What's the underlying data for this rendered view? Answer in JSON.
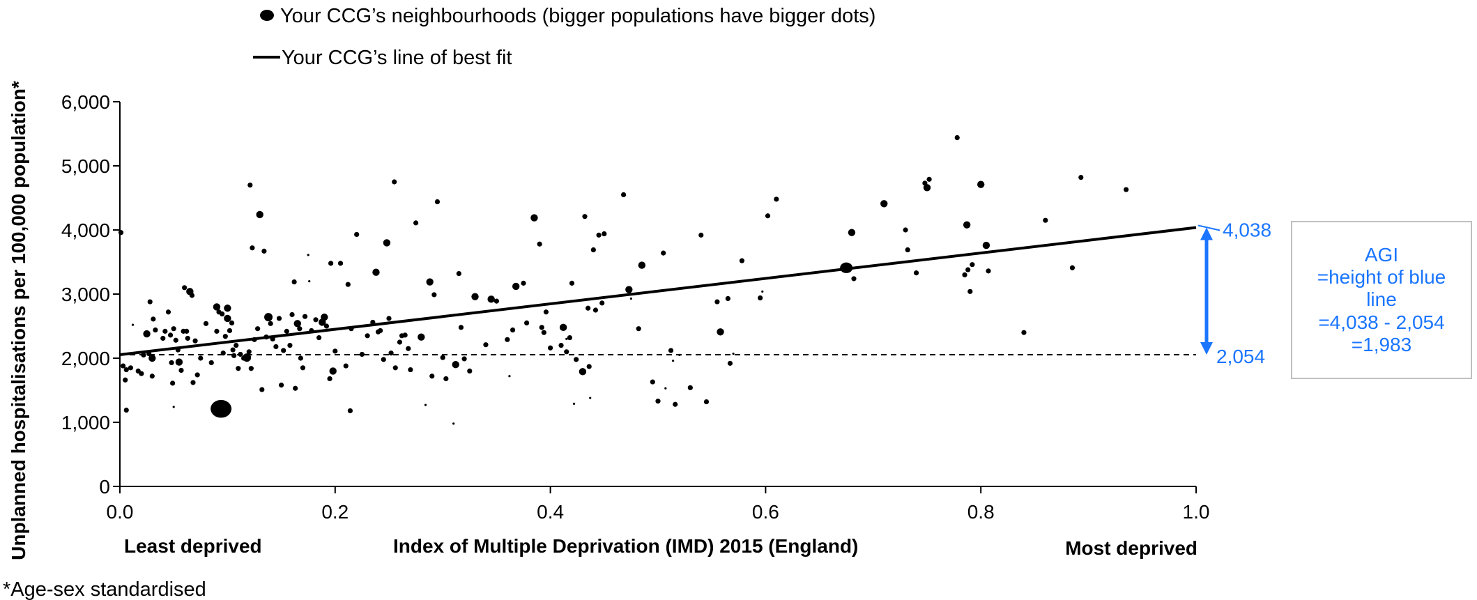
{
  "chart_data": {
    "type": "scatter",
    "legend": {
      "dots_label": "Your CCG’s neighbourhoods (bigger populations have bigger dots)",
      "line_label": "Your CCG’s line of best fit"
    },
    "ylabel": "Unplanned hospitalisations per 100,000 population*",
    "xlabel": "Index of Multiple Deprivation (IMD) 2015 (England)",
    "x_left_label": "Least deprived",
    "x_right_label": "Most deprived",
    "footnote": "*Age-sex standardised",
    "xlim": [
      0,
      1
    ],
    "ylim": [
      0,
      6000
    ],
    "x_ticks": [
      0,
      0.2,
      0.4,
      0.6,
      0.8,
      1
    ],
    "x_tick_labels": [
      "0.0",
      "0.2",
      "0.4",
      "0.6",
      "0.8",
      "1.0"
    ],
    "y_ticks": [
      0,
      1000,
      2000,
      3000,
      4000,
      5000,
      6000
    ],
    "y_tick_labels": [
      "0",
      "1,000",
      "2,000",
      "3,000",
      "4,000",
      "5,000",
      "6,000"
    ],
    "best_fit": {
      "x": [
        0,
        1
      ],
      "y": [
        2054,
        4038
      ]
    },
    "reference_line_y": 2054,
    "annotation": {
      "top_label": "4,038",
      "bottom_label": "2,054",
      "top_value": 4038,
      "bottom_value": 2054,
      "box_lines": [
        "AGI",
        "=height of blue",
        "line",
        "=4,038 - 2,054",
        "=1,983"
      ]
    },
    "colors": {
      "points": "#000000",
      "accent": "#1a75ff",
      "box_border": "#bfbfbf"
    },
    "points": [
      {
        "x": 0.001,
        "y": 3960,
        "s": 2
      },
      {
        "x": 0.003,
        "y": 1880,
        "s": 2
      },
      {
        "x": 0.005,
        "y": 1660,
        "s": 2
      },
      {
        "x": 0.006,
        "y": 1820,
        "s": 2
      },
      {
        "x": 0.01,
        "y": 1850,
        "s": 2
      },
      {
        "x": 0.006,
        "y": 1190,
        "s": 2
      },
      {
        "x": 0.012,
        "y": 2520,
        "s": 1
      },
      {
        "x": 0.017,
        "y": 1800,
        "s": 2
      },
      {
        "x": 0.02,
        "y": 1760,
        "s": 2
      },
      {
        "x": 0.022,
        "y": 2050,
        "s": 2
      },
      {
        "x": 0.025,
        "y": 2380,
        "s": 3
      },
      {
        "x": 0.027,
        "y": 2070,
        "s": 2
      },
      {
        "x": 0.028,
        "y": 2880,
        "s": 2
      },
      {
        "x": 0.03,
        "y": 2000,
        "s": 3
      },
      {
        "x": 0.03,
        "y": 1720,
        "s": 2
      },
      {
        "x": 0.031,
        "y": 2610,
        "s": 2
      },
      {
        "x": 0.033,
        "y": 2440,
        "s": 2
      },
      {
        "x": 0.04,
        "y": 2310,
        "s": 2
      },
      {
        "x": 0.042,
        "y": 2420,
        "s": 2
      },
      {
        "x": 0.045,
        "y": 2720,
        "s": 2
      },
      {
        "x": 0.047,
        "y": 2360,
        "s": 2
      },
      {
        "x": 0.048,
        "y": 1930,
        "s": 2
      },
      {
        "x": 0.049,
        "y": 1610,
        "s": 2
      },
      {
        "x": 0.05,
        "y": 1240,
        "s": 1
      },
      {
        "x": 0.05,
        "y": 2460,
        "s": 2
      },
      {
        "x": 0.052,
        "y": 2280,
        "s": 2
      },
      {
        "x": 0.054,
        "y": 2130,
        "s": 2
      },
      {
        "x": 0.055,
        "y": 1940,
        "s": 3
      },
      {
        "x": 0.057,
        "y": 1810,
        "s": 2
      },
      {
        "x": 0.059,
        "y": 2420,
        "s": 2
      },
      {
        "x": 0.06,
        "y": 3100,
        "s": 2
      },
      {
        "x": 0.062,
        "y": 2420,
        "s": 2
      },
      {
        "x": 0.063,
        "y": 2310,
        "s": 2
      },
      {
        "x": 0.065,
        "y": 3040,
        "s": 3
      },
      {
        "x": 0.067,
        "y": 2980,
        "s": 2
      },
      {
        "x": 0.068,
        "y": 1620,
        "s": 2
      },
      {
        "x": 0.07,
        "y": 2270,
        "s": 2
      },
      {
        "x": 0.072,
        "y": 1740,
        "s": 2
      },
      {
        "x": 0.075,
        "y": 2000,
        "s": 2
      },
      {
        "x": 0.08,
        "y": 2540,
        "s": 2
      },
      {
        "x": 0.085,
        "y": 1930,
        "s": 2
      },
      {
        "x": 0.09,
        "y": 2420,
        "s": 2
      },
      {
        "x": 0.09,
        "y": 2800,
        "s": 3
      },
      {
        "x": 0.092,
        "y": 2720,
        "s": 2
      },
      {
        "x": 0.094,
        "y": 1210,
        "s": 10
      },
      {
        "x": 0.095,
        "y": 2690,
        "s": 2
      },
      {
        "x": 0.096,
        "y": 2080,
        "s": 2
      },
      {
        "x": 0.098,
        "y": 2340,
        "s": 2
      },
      {
        "x": 0.1,
        "y": 2780,
        "s": 3
      },
      {
        "x": 0.1,
        "y": 2620,
        "s": 3
      },
      {
        "x": 0.102,
        "y": 2430,
        "s": 2
      },
      {
        "x": 0.104,
        "y": 2550,
        "s": 2
      },
      {
        "x": 0.105,
        "y": 2130,
        "s": 2
      },
      {
        "x": 0.106,
        "y": 2040,
        "s": 2
      },
      {
        "x": 0.108,
        "y": 2200,
        "s": 2
      },
      {
        "x": 0.11,
        "y": 1840,
        "s": 2
      },
      {
        "x": 0.112,
        "y": 2060,
        "s": 2
      },
      {
        "x": 0.115,
        "y": 2000,
        "s": 2
      },
      {
        "x": 0.118,
        "y": 2010,
        "s": 4
      },
      {
        "x": 0.12,
        "y": 2100,
        "s": 2
      },
      {
        "x": 0.122,
        "y": 1840,
        "s": 2
      },
      {
        "x": 0.121,
        "y": 4700,
        "s": 2
      },
      {
        "x": 0.123,
        "y": 3720,
        "s": 2
      },
      {
        "x": 0.125,
        "y": 2290,
        "s": 2
      },
      {
        "x": 0.128,
        "y": 2460,
        "s": 2
      },
      {
        "x": 0.13,
        "y": 4240,
        "s": 3
      },
      {
        "x": 0.132,
        "y": 1510,
        "s": 2
      },
      {
        "x": 0.134,
        "y": 3670,
        "s": 2
      },
      {
        "x": 0.136,
        "y": 2330,
        "s": 2
      },
      {
        "x": 0.138,
        "y": 2640,
        "s": 4
      },
      {
        "x": 0.14,
        "y": 2540,
        "s": 2
      },
      {
        "x": 0.142,
        "y": 2300,
        "s": 2
      },
      {
        "x": 0.145,
        "y": 2180,
        "s": 2
      },
      {
        "x": 0.148,
        "y": 2620,
        "s": 2
      },
      {
        "x": 0.15,
        "y": 1580,
        "s": 2
      },
      {
        "x": 0.152,
        "y": 2120,
        "s": 2
      },
      {
        "x": 0.155,
        "y": 2420,
        "s": 2
      },
      {
        "x": 0.158,
        "y": 2200,
        "s": 2
      },
      {
        "x": 0.16,
        "y": 2680,
        "s": 2
      },
      {
        "x": 0.162,
        "y": 3190,
        "s": 2
      },
      {
        "x": 0.163,
        "y": 1530,
        "s": 2
      },
      {
        "x": 0.165,
        "y": 2540,
        "s": 3
      },
      {
        "x": 0.167,
        "y": 2460,
        "s": 2
      },
      {
        "x": 0.168,
        "y": 2000,
        "s": 2
      },
      {
        "x": 0.17,
        "y": 1850,
        "s": 2
      },
      {
        "x": 0.172,
        "y": 2650,
        "s": 2
      },
      {
        "x": 0.175,
        "y": 3610,
        "s": 1
      },
      {
        "x": 0.176,
        "y": 3200,
        "s": 1
      },
      {
        "x": 0.178,
        "y": 2430,
        "s": 2
      },
      {
        "x": 0.182,
        "y": 2600,
        "s": 2
      },
      {
        "x": 0.185,
        "y": 2320,
        "s": 2
      },
      {
        "x": 0.188,
        "y": 2560,
        "s": 3
      },
      {
        "x": 0.19,
        "y": 2640,
        "s": 3
      },
      {
        "x": 0.192,
        "y": 2500,
        "s": 2
      },
      {
        "x": 0.195,
        "y": 1680,
        "s": 2
      },
      {
        "x": 0.196,
        "y": 3480,
        "s": 2
      },
      {
        "x": 0.198,
        "y": 1800,
        "s": 3
      },
      {
        "x": 0.2,
        "y": 2110,
        "s": 2
      },
      {
        "x": 0.205,
        "y": 3480,
        "s": 2
      },
      {
        "x": 0.21,
        "y": 1880,
        "s": 2
      },
      {
        "x": 0.212,
        "y": 3150,
        "s": 2
      },
      {
        "x": 0.214,
        "y": 1180,
        "s": 2
      },
      {
        "x": 0.215,
        "y": 2460,
        "s": 2
      },
      {
        "x": 0.22,
        "y": 3930,
        "s": 2
      },
      {
        "x": 0.225,
        "y": 2060,
        "s": 2
      },
      {
        "x": 0.23,
        "y": 2350,
        "s": 2
      },
      {
        "x": 0.235,
        "y": 2560,
        "s": 2
      },
      {
        "x": 0.238,
        "y": 3340,
        "s": 3
      },
      {
        "x": 0.24,
        "y": 2410,
        "s": 2
      },
      {
        "x": 0.242,
        "y": 2430,
        "s": 2
      },
      {
        "x": 0.245,
        "y": 1980,
        "s": 2
      },
      {
        "x": 0.248,
        "y": 3800,
        "s": 3
      },
      {
        "x": 0.25,
        "y": 2620,
        "s": 2
      },
      {
        "x": 0.252,
        "y": 2080,
        "s": 2
      },
      {
        "x": 0.255,
        "y": 4750,
        "s": 2
      },
      {
        "x": 0.256,
        "y": 1850,
        "s": 2
      },
      {
        "x": 0.26,
        "y": 2250,
        "s": 2
      },
      {
        "x": 0.262,
        "y": 2350,
        "s": 2
      },
      {
        "x": 0.265,
        "y": 2360,
        "s": 2
      },
      {
        "x": 0.268,
        "y": 2150,
        "s": 2
      },
      {
        "x": 0.27,
        "y": 1820,
        "s": 2
      },
      {
        "x": 0.275,
        "y": 4110,
        "s": 2
      },
      {
        "x": 0.28,
        "y": 2330,
        "s": 3
      },
      {
        "x": 0.284,
        "y": 1270,
        "s": 1
      },
      {
        "x": 0.288,
        "y": 3190,
        "s": 3
      },
      {
        "x": 0.29,
        "y": 1720,
        "s": 2
      },
      {
        "x": 0.292,
        "y": 2990,
        "s": 2
      },
      {
        "x": 0.295,
        "y": 4440,
        "s": 2
      },
      {
        "x": 0.3,
        "y": 2010,
        "s": 2
      },
      {
        "x": 0.303,
        "y": 1680,
        "s": 2
      },
      {
        "x": 0.31,
        "y": 980,
        "s": 1
      },
      {
        "x": 0.312,
        "y": 1900,
        "s": 3
      },
      {
        "x": 0.315,
        "y": 3320,
        "s": 2
      },
      {
        "x": 0.317,
        "y": 2480,
        "s": 2
      },
      {
        "x": 0.32,
        "y": 1990,
        "s": 2
      },
      {
        "x": 0.325,
        "y": 1800,
        "s": 2
      },
      {
        "x": 0.33,
        "y": 2960,
        "s": 3
      },
      {
        "x": 0.34,
        "y": 2210,
        "s": 2
      },
      {
        "x": 0.345,
        "y": 2920,
        "s": 3
      },
      {
        "x": 0.35,
        "y": 2890,
        "s": 2
      },
      {
        "x": 0.36,
        "y": 2290,
        "s": 2
      },
      {
        "x": 0.362,
        "y": 1720,
        "s": 1
      },
      {
        "x": 0.365,
        "y": 2440,
        "s": 2
      },
      {
        "x": 0.368,
        "y": 3120,
        "s": 3
      },
      {
        "x": 0.375,
        "y": 3170,
        "s": 2
      },
      {
        "x": 0.378,
        "y": 2550,
        "s": 2
      },
      {
        "x": 0.385,
        "y": 4190,
        "s": 3
      },
      {
        "x": 0.39,
        "y": 3780,
        "s": 2
      },
      {
        "x": 0.392,
        "y": 2480,
        "s": 2
      },
      {
        "x": 0.394,
        "y": 2400,
        "s": 2
      },
      {
        "x": 0.396,
        "y": 2720,
        "s": 2
      },
      {
        "x": 0.4,
        "y": 2160,
        "s": 2
      },
      {
        "x": 0.41,
        "y": 2200,
        "s": 2
      },
      {
        "x": 0.412,
        "y": 2480,
        "s": 3
      },
      {
        "x": 0.415,
        "y": 2100,
        "s": 2
      },
      {
        "x": 0.418,
        "y": 2320,
        "s": 2
      },
      {
        "x": 0.42,
        "y": 3170,
        "s": 2
      },
      {
        "x": 0.422,
        "y": 1290,
        "s": 1
      },
      {
        "x": 0.424,
        "y": 1980,
        "s": 2
      },
      {
        "x": 0.43,
        "y": 1790,
        "s": 3
      },
      {
        "x": 0.432,
        "y": 4210,
        "s": 2
      },
      {
        "x": 0.435,
        "y": 2780,
        "s": 2
      },
      {
        "x": 0.436,
        "y": 1870,
        "s": 2
      },
      {
        "x": 0.437,
        "y": 1380,
        "s": 1
      },
      {
        "x": 0.44,
        "y": 3690,
        "s": 2
      },
      {
        "x": 0.442,
        "y": 2750,
        "s": 2
      },
      {
        "x": 0.445,
        "y": 3920,
        "s": 2
      },
      {
        "x": 0.448,
        "y": 2860,
        "s": 2
      },
      {
        "x": 0.45,
        "y": 3940,
        "s": 2
      },
      {
        "x": 0.468,
        "y": 4550,
        "s": 2
      },
      {
        "x": 0.473,
        "y": 3070,
        "s": 3
      },
      {
        "x": 0.475,
        "y": 2930,
        "s": 1
      },
      {
        "x": 0.482,
        "y": 2460,
        "s": 2
      },
      {
        "x": 0.485,
        "y": 3450,
        "s": 3
      },
      {
        "x": 0.495,
        "y": 1630,
        "s": 2
      },
      {
        "x": 0.5,
        "y": 1330,
        "s": 2
      },
      {
        "x": 0.505,
        "y": 3640,
        "s": 2
      },
      {
        "x": 0.507,
        "y": 1530,
        "s": 1
      },
      {
        "x": 0.512,
        "y": 2120,
        "s": 2
      },
      {
        "x": 0.514,
        "y": 1960,
        "s": 1
      },
      {
        "x": 0.516,
        "y": 1280,
        "s": 2
      },
      {
        "x": 0.52,
        "y": 2050,
        "s": 1
      },
      {
        "x": 0.53,
        "y": 1540,
        "s": 2
      },
      {
        "x": 0.54,
        "y": 3920,
        "s": 2
      },
      {
        "x": 0.545,
        "y": 1320,
        "s": 2
      },
      {
        "x": 0.555,
        "y": 2880,
        "s": 2
      },
      {
        "x": 0.558,
        "y": 2410,
        "s": 3
      },
      {
        "x": 0.565,
        "y": 2930,
        "s": 2
      },
      {
        "x": 0.567,
        "y": 1920,
        "s": 2
      },
      {
        "x": 0.57,
        "y": 2070,
        "s": 1
      },
      {
        "x": 0.578,
        "y": 3520,
        "s": 2
      },
      {
        "x": 0.595,
        "y": 2940,
        "s": 2
      },
      {
        "x": 0.597,
        "y": 3040,
        "s": 1
      },
      {
        "x": 0.602,
        "y": 4220,
        "s": 2
      },
      {
        "x": 0.61,
        "y": 4480,
        "s": 2
      },
      {
        "x": 0.675,
        "y": 3410,
        "s": 6
      },
      {
        "x": 0.68,
        "y": 3960,
        "s": 3
      },
      {
        "x": 0.682,
        "y": 3240,
        "s": 2
      },
      {
        "x": 0.71,
        "y": 4410,
        "s": 3
      },
      {
        "x": 0.73,
        "y": 4000,
        "s": 2
      },
      {
        "x": 0.732,
        "y": 3690,
        "s": 2
      },
      {
        "x": 0.74,
        "y": 3330,
        "s": 2
      },
      {
        "x": 0.748,
        "y": 4730,
        "s": 2
      },
      {
        "x": 0.75,
        "y": 4660,
        "s": 3
      },
      {
        "x": 0.752,
        "y": 4790,
        "s": 2
      },
      {
        "x": 0.778,
        "y": 5440,
        "s": 2
      },
      {
        "x": 0.785,
        "y": 3300,
        "s": 2
      },
      {
        "x": 0.787,
        "y": 4080,
        "s": 3
      },
      {
        "x": 0.788,
        "y": 3380,
        "s": 2
      },
      {
        "x": 0.79,
        "y": 3040,
        "s": 2
      },
      {
        "x": 0.792,
        "y": 3460,
        "s": 2
      },
      {
        "x": 0.8,
        "y": 4710,
        "s": 3
      },
      {
        "x": 0.805,
        "y": 3760,
        "s": 3
      },
      {
        "x": 0.807,
        "y": 3360,
        "s": 2
      },
      {
        "x": 0.84,
        "y": 2400,
        "s": 2
      },
      {
        "x": 0.86,
        "y": 4150,
        "s": 2
      },
      {
        "x": 0.885,
        "y": 3410,
        "s": 2
      },
      {
        "x": 0.893,
        "y": 4820,
        "s": 2
      },
      {
        "x": 0.935,
        "y": 4630,
        "s": 2
      },
      {
        "x": 0.415,
        "y": 2300,
        "s": 1
      }
    ]
  }
}
